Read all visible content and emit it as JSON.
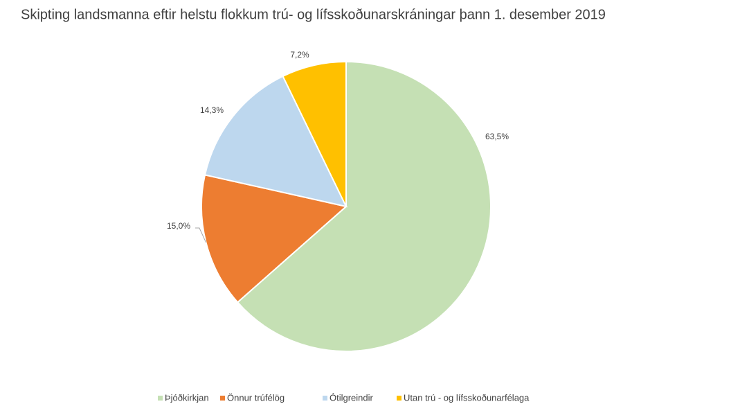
{
  "chart_data": {
    "type": "pie",
    "title": "Skipting landsmanna eftir helstu flokkum trú- og lífsskoðunarskráningar þann 1. desember 2019",
    "categories": [
      "Þjóðkirkjan",
      "Önnur trúfélög",
      "Ótilgreindir",
      "Utan trú - og lífsskoðunarfélaga"
    ],
    "values": [
      63.5,
      15.0,
      14.3,
      7.2
    ],
    "value_labels": [
      "63,5%",
      "15,0%",
      "14,3%",
      "7,2%"
    ],
    "colors": [
      "#c5e0b4",
      "#ed7d31",
      "#bdd7ee",
      "#ffc000"
    ],
    "legend": "bottom"
  }
}
